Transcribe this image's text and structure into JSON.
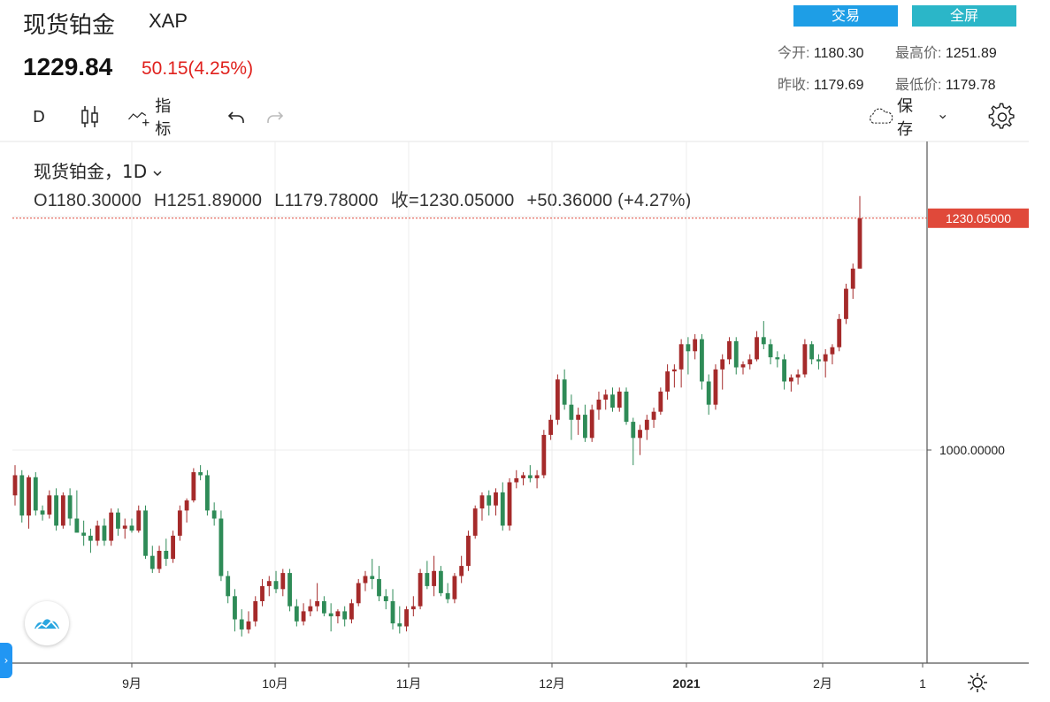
{
  "header": {
    "title": "现货铂金",
    "symbol": "XAP",
    "price": "1229.84",
    "change": "50.15(4.25%)",
    "buttons": {
      "trade": "交易",
      "fullscreen": "全屏"
    },
    "stats": [
      {
        "key": "今开:",
        "value": "1180.30"
      },
      {
        "key": "最高价:",
        "value": "1251.89"
      },
      {
        "key": "昨收:",
        "value": "1179.69"
      },
      {
        "key": "最低价:",
        "value": "1179.78"
      }
    ]
  },
  "toolbar": {
    "interval": "D",
    "indicators_label": "指标",
    "save_label": "保存"
  },
  "legend": {
    "series": "现货铂金，1D",
    "open": "O1180.30000",
    "high": "H1251.89000",
    "low": "L1179.78000",
    "close": "收=1230.05000",
    "change": "+50.36000 (+4.27%)"
  },
  "chart_data": {
    "type": "candlestick",
    "price_label": "1230.05000",
    "y_ticks": [
      "1000.00000"
    ],
    "x_ticks": [
      "9月",
      "10月",
      "11月",
      "12月",
      "2021",
      "2月",
      "1"
    ],
    "grid": true,
    "colors": {
      "up": "#a52a2a",
      "down": "#2e8b57",
      "last_price": "#e0493a"
    },
    "bars": [
      [
        955,
        985,
        945,
        975
      ],
      [
        975,
        980,
        928,
        935
      ],
      [
        935,
        975,
        922,
        973
      ],
      [
        973,
        978,
        935,
        940
      ],
      [
        940,
        945,
        930,
        936
      ],
      [
        936,
        960,
        932,
        955
      ],
      [
        955,
        962,
        920,
        925
      ],
      [
        925,
        958,
        922,
        955
      ],
      [
        955,
        962,
        925,
        932
      ],
      [
        932,
        960,
        918,
        918
      ],
      [
        918,
        930,
        905,
        915
      ],
      [
        915,
        922,
        898,
        910
      ],
      [
        910,
        930,
        905,
        925
      ],
      [
        925,
        932,
        905,
        910
      ],
      [
        910,
        942,
        905,
        938
      ],
      [
        938,
        942,
        915,
        922
      ],
      [
        922,
        932,
        912,
        925
      ],
      [
        925,
        932,
        918,
        920
      ],
      [
        920,
        945,
        918,
        940
      ],
      [
        940,
        945,
        892,
        895
      ],
      [
        895,
        905,
        878,
        882
      ],
      [
        882,
        905,
        878,
        900
      ],
      [
        900,
        912,
        885,
        892
      ],
      [
        892,
        920,
        888,
        915
      ],
      [
        915,
        945,
        910,
        940
      ],
      [
        940,
        952,
        928,
        950
      ],
      [
        950,
        982,
        948,
        978
      ],
      [
        978,
        985,
        970,
        975
      ],
      [
        975,
        980,
        935,
        940
      ],
      [
        940,
        948,
        925,
        932
      ],
      [
        932,
        940,
        870,
        875
      ],
      [
        875,
        880,
        848,
        855
      ],
      [
        855,
        862,
        820,
        832
      ],
      [
        832,
        842,
        815,
        822
      ],
      [
        822,
        840,
        818,
        830
      ],
      [
        830,
        855,
        825,
        850
      ],
      [
        850,
        872,
        845,
        865
      ],
      [
        865,
        875,
        855,
        870
      ],
      [
        870,
        880,
        858,
        862
      ],
      [
        862,
        882,
        855,
        878
      ],
      [
        878,
        882,
        840,
        845
      ],
      [
        845,
        852,
        825,
        830
      ],
      [
        830,
        848,
        826,
        840
      ],
      [
        840,
        852,
        835,
        845
      ],
      [
        845,
        868,
        840,
        850
      ],
      [
        850,
        855,
        835,
        838
      ],
      [
        838,
        848,
        820,
        835
      ],
      [
        835,
        842,
        828,
        840
      ],
      [
        840,
        845,
        825,
        832
      ],
      [
        832,
        852,
        828,
        848
      ],
      [
        848,
        872,
        845,
        868
      ],
      [
        868,
        880,
        860,
        875
      ],
      [
        875,
        892,
        862,
        872
      ],
      [
        872,
        885,
        850,
        855
      ],
      [
        855,
        862,
        842,
        850
      ],
      [
        850,
        862,
        822,
        828
      ],
      [
        828,
        845,
        818,
        825
      ],
      [
        825,
        845,
        820,
        842
      ],
      [
        842,
        855,
        835,
        845
      ],
      [
        845,
        882,
        842,
        878
      ],
      [
        878,
        890,
        862,
        865
      ],
      [
        865,
        895,
        855,
        880
      ],
      [
        880,
        885,
        855,
        858
      ],
      [
        858,
        868,
        848,
        852
      ],
      [
        852,
        878,
        848,
        875
      ],
      [
        875,
        895,
        868,
        885
      ],
      [
        885,
        920,
        880,
        915
      ],
      [
        915,
        945,
        912,
        942
      ],
      [
        942,
        958,
        930,
        955
      ],
      [
        955,
        960,
        935,
        945
      ],
      [
        945,
        962,
        935,
        958
      ],
      [
        958,
        968,
        920,
        925
      ],
      [
        925,
        972,
        920,
        968
      ],
      [
        968,
        980,
        962,
        972
      ],
      [
        972,
        978,
        965,
        975
      ],
      [
        975,
        985,
        968,
        972
      ],
      [
        972,
        980,
        962,
        975
      ],
      [
        975,
        1020,
        972,
        1015
      ],
      [
        1015,
        1035,
        1010,
        1030
      ],
      [
        1030,
        1075,
        1025,
        1070
      ],
      [
        1070,
        1080,
        1040,
        1045
      ],
      [
        1045,
        1055,
        1010,
        1030
      ],
      [
        1030,
        1042,
        1015,
        1035
      ],
      [
        1035,
        1045,
        1008,
        1012
      ],
      [
        1012,
        1045,
        1008,
        1040
      ],
      [
        1040,
        1058,
        1030,
        1050
      ],
      [
        1050,
        1060,
        1040,
        1055
      ],
      [
        1055,
        1062,
        1038,
        1042
      ],
      [
        1042,
        1062,
        1038,
        1058
      ],
      [
        1058,
        1062,
        1025,
        1028
      ],
      [
        1028,
        1032,
        985,
        1012
      ],
      [
        1012,
        1025,
        995,
        1020
      ],
      [
        1020,
        1035,
        1010,
        1030
      ],
      [
        1030,
        1042,
        1022,
        1038
      ],
      [
        1038,
        1062,
        1035,
        1058
      ],
      [
        1058,
        1085,
        1050,
        1078
      ],
      [
        1078,
        1085,
        1062,
        1080
      ],
      [
        1080,
        1110,
        1062,
        1105
      ],
      [
        1105,
        1112,
        1075,
        1098
      ],
      [
        1098,
        1115,
        1090,
        1110
      ],
      [
        1110,
        1115,
        1060,
        1068
      ],
      [
        1068,
        1075,
        1035,
        1045
      ],
      [
        1045,
        1085,
        1040,
        1080
      ],
      [
        1080,
        1095,
        1060,
        1090
      ],
      [
        1090,
        1112,
        1085,
        1108
      ],
      [
        1108,
        1112,
        1075,
        1082
      ],
      [
        1082,
        1088,
        1075,
        1085
      ],
      [
        1085,
        1095,
        1080,
        1090
      ],
      [
        1090,
        1118,
        1088,
        1112
      ],
      [
        1112,
        1128,
        1100,
        1105
      ],
      [
        1105,
        1110,
        1085,
        1092
      ],
      [
        1092,
        1098,
        1082,
        1090
      ],
      [
        1090,
        1095,
        1060,
        1068
      ],
      [
        1068,
        1075,
        1058,
        1072
      ],
      [
        1072,
        1080,
        1065,
        1075
      ],
      [
        1075,
        1110,
        1072,
        1105
      ],
      [
        1105,
        1108,
        1085,
        1090
      ],
      [
        1090,
        1095,
        1080,
        1088
      ],
      [
        1088,
        1100,
        1072,
        1095
      ],
      [
        1095,
        1105,
        1085,
        1102
      ],
      [
        1102,
        1135,
        1098,
        1130
      ],
      [
        1130,
        1165,
        1125,
        1160
      ],
      [
        1160,
        1185,
        1150,
        1180
      ],
      [
        1180,
        1252,
        1180,
        1230
      ]
    ]
  }
}
